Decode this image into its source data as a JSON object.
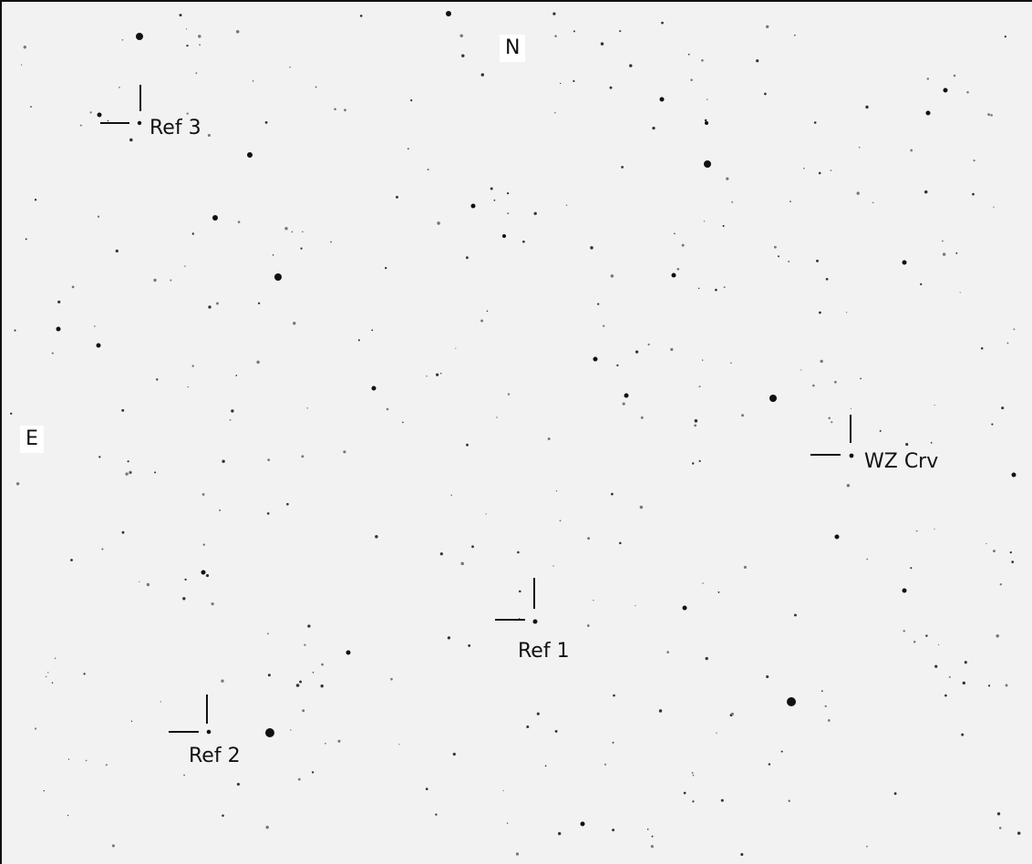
{
  "compass": {
    "north": "N",
    "east": "E"
  },
  "targets": {
    "wz_crv": "WZ Crv",
    "ref1": "Ref 1",
    "ref2": "Ref 2",
    "ref3": "Ref 3"
  },
  "colors": {
    "sky_background": "#f2f2f2",
    "star": "#111111",
    "marker": "#111111"
  }
}
